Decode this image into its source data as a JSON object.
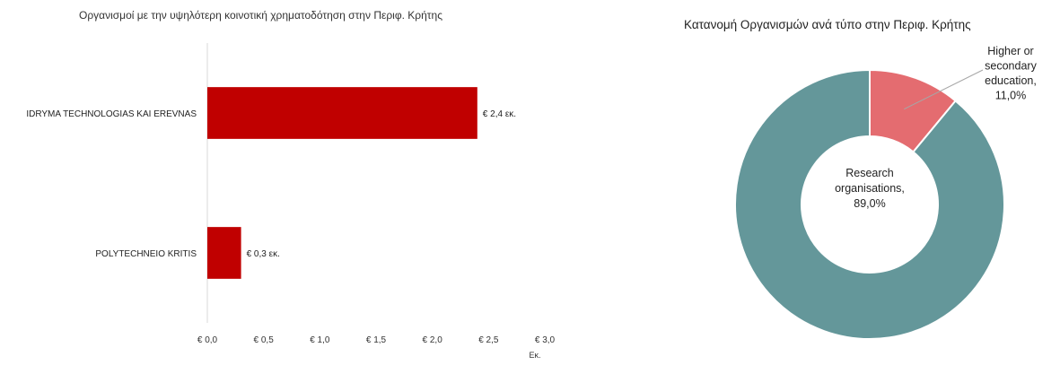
{
  "chart_data": [
    {
      "type": "bar",
      "orientation": "horizontal",
      "title": "Οργανισμοί με την υψηλότερη κοινοτική χρηματοδότηση στην Περιφ. Κρήτης",
      "categories": [
        "IDRYMA TECHNOLOGIAS KAI EREVNAS",
        "POLYTECHNEIO KRITIS"
      ],
      "values": [
        2.4,
        0.3
      ],
      "data_labels": [
        "€ 2,4 εκ.",
        "€ 0,3 εκ."
      ],
      "xlabel": "Εκ.",
      "xlim": [
        0,
        3.0
      ],
      "ticks": [
        "€ 0,0",
        "€ 0,5",
        "€ 1,0",
        "€ 1,5",
        "€ 2,0",
        "€ 2,5",
        "€ 3,0"
      ],
      "grid": false,
      "color": "#c00000"
    },
    {
      "type": "pie",
      "variant": "donut",
      "title": "Κατανομή Οργανισμών ανά τύπο στην Περιφ. Κρήτης",
      "slices": [
        {
          "label_lines": [
            "Higher or",
            "secondary",
            "education,",
            "11,0%"
          ],
          "value": 11.0,
          "color": "#e46c70"
        },
        {
          "label_lines": [
            "Research",
            "organisations,",
            "89,0%"
          ],
          "value": 89.0,
          "color": "#64979a"
        }
      ]
    }
  ]
}
